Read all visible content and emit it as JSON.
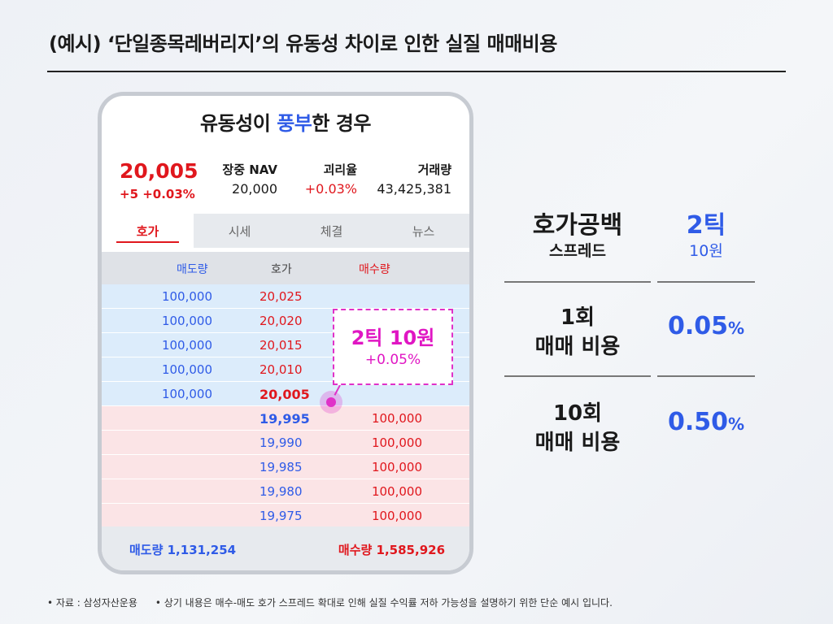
{
  "title": "(예시) ‘단일종목레버리지’의 유동성 차이로 인한 실질 매매비용",
  "phone": {
    "heading_pre": "유동성이 ",
    "heading_highlight": "풍부",
    "heading_post": "한 경우",
    "summary": {
      "price": "20,005",
      "change": "+5 +0.03%",
      "nav_label": "장중 NAV",
      "nav_value": "20,000",
      "premium_label": "괴리율",
      "premium_value": "+0.03%",
      "volume_label": "거래량",
      "volume_value": "43,425,381"
    },
    "tabs": [
      {
        "label": "호가",
        "active": true
      },
      {
        "label": "시세",
        "active": false
      },
      {
        "label": "체결",
        "active": false
      },
      {
        "label": "뉴스",
        "active": false
      }
    ],
    "orderbook": {
      "headers": {
        "ask_qty": "매도량",
        "price": "호가",
        "bid_qty": "매수량"
      },
      "asks": [
        {
          "qty": "100,000",
          "price": "20,025"
        },
        {
          "qty": "100,000",
          "price": "20,020"
        },
        {
          "qty": "100,000",
          "price": "20,015"
        },
        {
          "qty": "100,000",
          "price": "20,010"
        },
        {
          "qty": "100,000",
          "price": "20,005"
        }
      ],
      "bids": [
        {
          "price": "19,995",
          "qty": "100,000"
        },
        {
          "price": "19,990",
          "qty": "100,000"
        },
        {
          "price": "19,985",
          "qty": "100,000"
        },
        {
          "price": "19,980",
          "qty": "100,000"
        },
        {
          "price": "19,975",
          "qty": "100,000"
        }
      ],
      "footer": {
        "ask_total": "매도량 1,131,254",
        "bid_total": "매수량 1,585,926"
      }
    },
    "callout": {
      "line1": "2틱 10원",
      "line2": "+0.05%"
    }
  },
  "panel": {
    "spread_label": "호가공백",
    "spread_sublabel": "스프레드",
    "spread_ticks": "2틱",
    "spread_won": "10원",
    "cost1_label_line1": "1회",
    "cost1_label_line2": "매매 비용",
    "cost1_value": "0.05",
    "cost10_label_line1": "10회",
    "cost10_label_line2": "매매 비용",
    "cost10_value": "0.50",
    "percent": "%"
  },
  "footnote": {
    "source": "• 자료 : 삼성자산운용",
    "note": "• 상기 내용은 매수-매도 호가 스프레드 확대로 인해 실질 수익률 저하 가능성을 설명하기 위한 단순 예시 입니다."
  },
  "colors": {
    "blue": "#2f5be7",
    "red": "#e0171d",
    "magenta": "#e016c3"
  }
}
